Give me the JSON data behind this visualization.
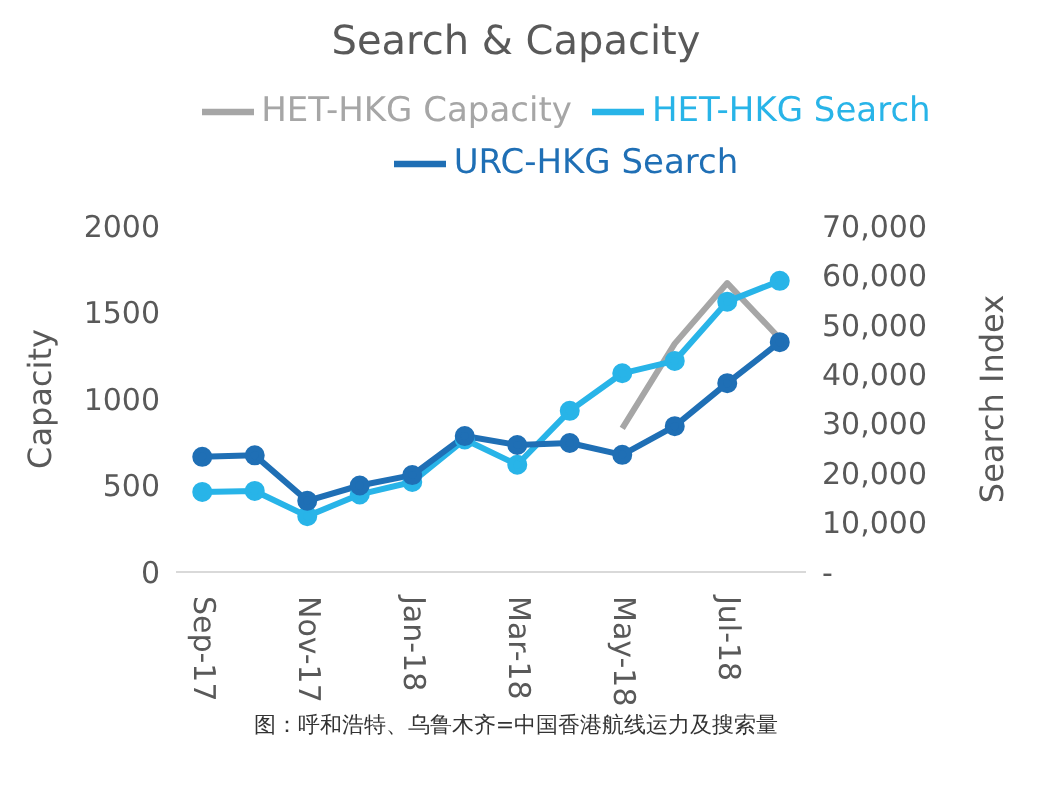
{
  "chart_data": {
    "type": "line",
    "title": "Search & Capacity",
    "categories": [
      "Sep-17",
      null,
      "Nov-17",
      null,
      "Jan-18",
      null,
      "Mar-18",
      null,
      "May-18",
      null,
      "Jul-18",
      null
    ],
    "series": [
      {
        "name": "URC-HKG Search",
        "color": "#1f6fb5",
        "axis": "y2",
        "marker": "circle",
        "values": [
          23300,
          23600,
          14400,
          17500,
          19600,
          27500,
          25700,
          26100,
          23700,
          29500,
          38200,
          46500
        ]
      },
      {
        "name": "HET-HKG Search",
        "color": "#28b4e8",
        "axis": "y2",
        "marker": "circle",
        "values": [
          16200,
          16400,
          11300,
          15700,
          18200,
          26800,
          21700,
          32600,
          40200,
          42700,
          54700,
          58900
        ]
      },
      {
        "name": "HET-HKG Capacity",
        "color": "#a6a6a6",
        "marker": "none",
        "values": [
          null,
          null,
          null,
          null,
          null,
          null,
          null,
          null,
          830,
          1320,
          1670,
          1350
        ]
      }
    ],
    "ylabel": "Capacity",
    "y2label": "Search Index",
    "ylim": [
      0,
      2000
    ],
    "yticks": [
      0,
      500,
      1000,
      1500,
      2000
    ],
    "y2lim": [
      0,
      70000
    ],
    "y2ticks": [
      {
        "value": 0,
        "label": "-"
      },
      {
        "value": 10000,
        "label": "10,000"
      },
      {
        "value": 20000,
        "label": "20,000"
      },
      {
        "value": 30000,
        "label": "30,000"
      },
      {
        "value": 40000,
        "label": "40,000"
      },
      {
        "value": 50000,
        "label": "50,000"
      },
      {
        "value": 60000,
        "label": "60,000"
      },
      {
        "value": 70000,
        "label": "70,000"
      }
    ],
    "grid": false,
    "legend": "top",
    "line_style": "solid",
    "annotations": [
      "图：呼和浩特、乌鲁木齐=中国香港航线运力及搜索量"
    ]
  }
}
